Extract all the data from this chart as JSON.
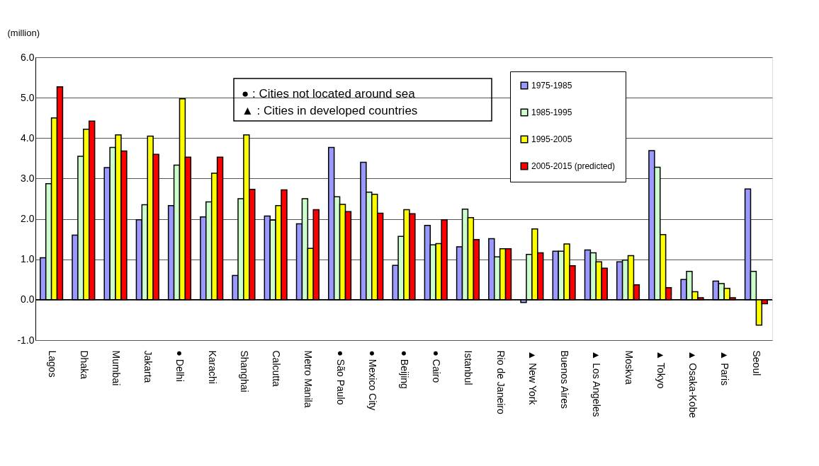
{
  "chart_data": {
    "type": "bar",
    "ylabel": "(million)",
    "categories": [
      "Lagos",
      "Dhaka",
      "Mumbai",
      "Jakarta",
      "● Delhi",
      "Karachi",
      "Shanghai",
      "Calcutta",
      "Metro Manila",
      "● São Paulo",
      "● Mexico City",
      "● Beijing",
      "● Cairo",
      "Istanbul",
      "Rio de Janeiro",
      "▲ New York",
      "Buenos Aires",
      "▲ Los Angeles",
      "Moskva",
      "▲ Tokyo",
      "▲ Osaka-Kobe",
      "▲ Paris",
      "Seoul"
    ],
    "series": [
      {
        "name": "1975-1985",
        "color": "#9999ff",
        "values": [
          1.04,
          1.6,
          3.27,
          1.98,
          2.33,
          2.05,
          0.6,
          2.07,
          1.88,
          3.77,
          3.4,
          0.85,
          1.84,
          1.31,
          1.51,
          -0.07,
          1.2,
          1.23,
          0.94,
          3.69,
          0.5,
          0.46,
          2.74
        ]
      },
      {
        "name": "1985-1995",
        "color": "#ccffcc",
        "values": [
          2.87,
          3.55,
          3.77,
          2.35,
          3.33,
          2.42,
          2.5,
          1.97,
          2.5,
          2.55,
          2.66,
          1.57,
          1.36,
          2.24,
          1.06,
          1.12,
          1.2,
          1.16,
          0.98,
          3.28,
          0.7,
          0.4,
          0.7
        ]
      },
      {
        "name": "1995-2005",
        "color": "#ffff00",
        "values": [
          4.5,
          4.22,
          4.08,
          4.05,
          4.97,
          3.13,
          4.08,
          2.33,
          1.27,
          2.36,
          2.61,
          2.23,
          1.39,
          2.03,
          1.26,
          1.75,
          1.38,
          0.94,
          1.09,
          1.61,
          0.2,
          0.28,
          -0.63
        ]
      },
      {
        "name": "2005-2015 (predicted)",
        "color": "#ff0000",
        "values": [
          5.27,
          4.42,
          3.68,
          3.6,
          3.53,
          3.53,
          2.73,
          2.72,
          2.23,
          2.18,
          2.14,
          2.13,
          1.98,
          1.49,
          1.26,
          1.16,
          0.84,
          0.78,
          0.37,
          0.3,
          0.05,
          0.05,
          -0.1
        ]
      }
    ],
    "ylim": [
      -1,
      6
    ],
    "yticks": [
      {
        "value": -1,
        "label": "-1.0"
      },
      {
        "value": 0,
        "label": "0.0"
      },
      {
        "value": 1,
        "label": "1.0"
      },
      {
        "value": 2,
        "label": "2.0"
      },
      {
        "value": 3,
        "label": "3.0"
      },
      {
        "value": 4,
        "label": "4.0"
      },
      {
        "value": 5,
        "label": "5.0"
      },
      {
        "value": 6,
        "label": "6.0"
      }
    ],
    "grid": "y",
    "legend": "top right",
    "annotations": [
      "● : Cities not located around sea",
      "▲ : Cities in developed countries"
    ]
  }
}
